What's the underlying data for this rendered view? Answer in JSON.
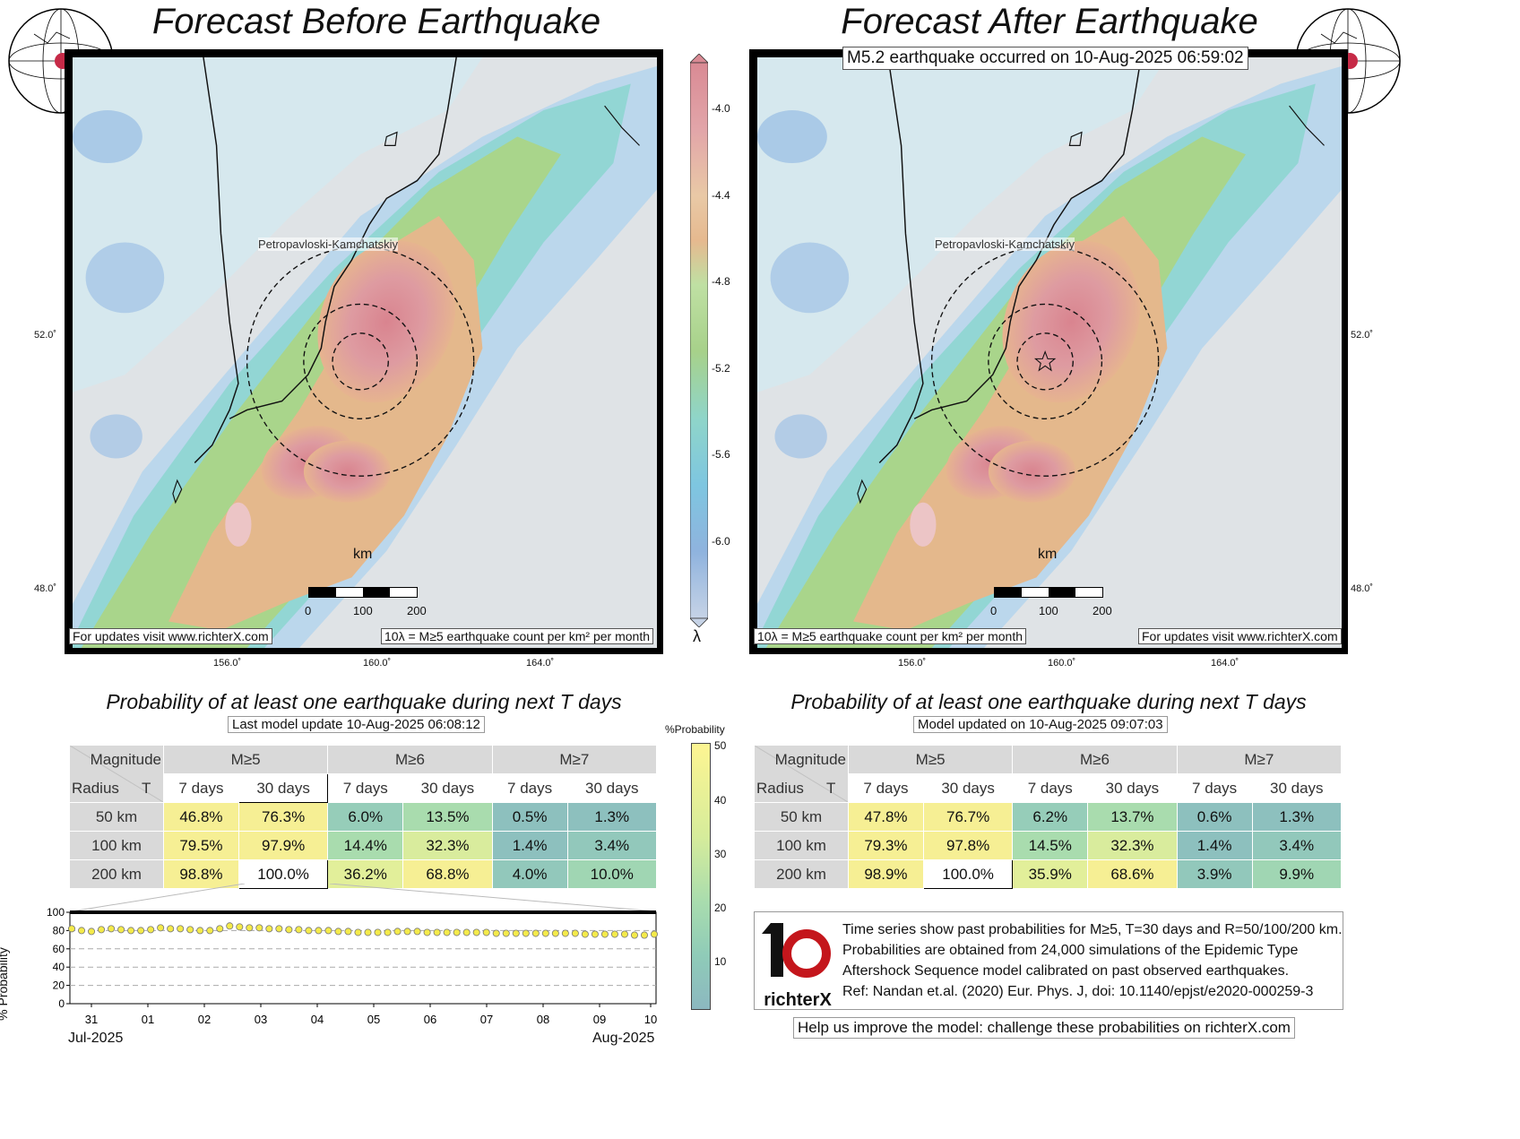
{
  "left_map": {
    "title": "Forecast Before Earthquake",
    "city_label": "Petropavloski-Kamchatskiy",
    "updates_note": "For updates visit www.richterX.com",
    "lambda_note": "10λ = M≥5 earthquake count per km² per month",
    "scale_unit": "km",
    "scale_ticks": [
      "0",
      "100",
      "200"
    ],
    "lat_ticks": [
      "52.0˚",
      "48.0˚"
    ],
    "lon_ticks": [
      "156.0˚",
      "160.0˚",
      "164.0˚"
    ]
  },
  "right_map": {
    "title": "Forecast After Earthquake",
    "event_banner": "M5.2 earthquake occurred on 10-Aug-2025 06:59:02",
    "city_label": "Petropavloski-Kamchatskiy",
    "updates_note": "For updates visit www.richterX.com",
    "lambda_note": "10λ = M≥5 earthquake count per km² per month",
    "scale_unit": "km",
    "scale_ticks": [
      "0",
      "100",
      "200"
    ],
    "lat_ticks": [
      "52.0˚",
      "48.0˚"
    ],
    "lon_ticks": [
      "156.0˚",
      "160.0˚",
      "164.0˚"
    ]
  },
  "lambda_colorbar": {
    "symbol": "λ",
    "ticks": [
      "-4.0",
      "-4.4",
      "-4.8",
      "-5.2",
      "-5.6",
      "-6.0"
    ],
    "colors": [
      "#d98a94",
      "#e2a5a9",
      "#e6b98f",
      "#e9c9a6",
      "#a7d18a",
      "#8fd5c9",
      "#7ec6e0",
      "#8fb3de",
      "#c6d3e6"
    ]
  },
  "left_table": {
    "title": "Probability of at least one earthquake during next T days",
    "subtitle": "Last model update 10-Aug-2025 06:08:12",
    "corner_top": "Magnitude",
    "corner_left": "Radius",
    "corner_right": "T",
    "magnitudes": [
      "M≥5",
      "M≥6",
      "M≥7"
    ],
    "periods": [
      "7 days",
      "30 days",
      "7 days",
      "30 days",
      "7 days",
      "30 days"
    ],
    "rows": [
      {
        "radius": "50 km",
        "cells": [
          "46.8%",
          "76.3%",
          "6.0%",
          "13.5%",
          "0.5%",
          "1.3%"
        ],
        "colors": [
          "#f6ef94",
          "#f6ef94",
          "#96cdb9",
          "#a9dcae",
          "#8dc0be",
          "#8dc0be"
        ]
      },
      {
        "radius": "100 km",
        "cells": [
          "79.5%",
          "97.9%",
          "14.4%",
          "32.3%",
          "1.4%",
          "3.4%"
        ],
        "colors": [
          "#f6ef94",
          "#f6ef94",
          "#a9dcae",
          "#d9ec9d",
          "#8dc0be",
          "#92c8bb"
        ]
      },
      {
        "radius": "200 km",
        "cells": [
          "98.8%",
          "100.0%",
          "36.2%",
          "68.8%",
          "4.0%",
          "10.0%"
        ],
        "colors": [
          "#f6ef94",
          "#ffffff",
          "#e2ef9a",
          "#f6ef94",
          "#92c8bb",
          "#a0d6b3"
        ]
      }
    ]
  },
  "right_table": {
    "title": "Probability of at least one earthquake during next T days",
    "subtitle": "Model updated on 10-Aug-2025 09:07:03",
    "corner_top": "Magnitude",
    "corner_left": "Radius",
    "corner_right": "T",
    "magnitudes": [
      "M≥5",
      "M≥6",
      "M≥7"
    ],
    "periods": [
      "7 days",
      "30 days",
      "7 days",
      "30 days",
      "7 days",
      "30 days"
    ],
    "rows": [
      {
        "radius": "50 km",
        "cells": [
          "47.8%",
          "76.7%",
          "6.2%",
          "13.7%",
          "0.6%",
          "1.3%"
        ],
        "colors": [
          "#f6ef94",
          "#f6ef94",
          "#96cdb9",
          "#a9dcae",
          "#8dc0be",
          "#8dc0be"
        ]
      },
      {
        "radius": "100 km",
        "cells": [
          "79.3%",
          "97.8%",
          "14.5%",
          "32.3%",
          "1.4%",
          "3.4%"
        ],
        "colors": [
          "#f6ef94",
          "#f6ef94",
          "#a9dcae",
          "#d9ec9d",
          "#8dc0be",
          "#92c8bb"
        ]
      },
      {
        "radius": "200 km",
        "cells": [
          "98.9%",
          "100.0%",
          "35.9%",
          "68.6%",
          "3.9%",
          "9.9%"
        ],
        "colors": [
          "#f6ef94",
          "#ffffff",
          "#e2ef9a",
          "#f6ef94",
          "#92c8bb",
          "#a0d6b3"
        ]
      }
    ]
  },
  "prob_colorbar": {
    "label": "%Probability",
    "ticks": [
      "50",
      "40",
      "30",
      "20",
      "10"
    ],
    "colors": [
      "#fdf592",
      "#d6ec9b",
      "#a8dcae",
      "#8fcbb8",
      "#8cb8c0"
    ]
  },
  "timeseries": {
    "ylabel": "% Probability",
    "yticks": [
      "100",
      "80",
      "60",
      "40",
      "20",
      "0"
    ],
    "xticks": [
      "31",
      "01",
      "02",
      "03",
      "04",
      "05",
      "06",
      "07",
      "08",
      "09",
      "10"
    ],
    "month_left": "Jul-2025",
    "month_right": "Aug-2025",
    "chart_data": {
      "type": "scatter",
      "ylim": [
        0,
        100
      ],
      "values": [
        82,
        80,
        79,
        81,
        82,
        81,
        80,
        80,
        81,
        83,
        82,
        82,
        81,
        80,
        80,
        82,
        85,
        84,
        83,
        83,
        82,
        82,
        81,
        81,
        80,
        80,
        80,
        79,
        79,
        78,
        78,
        78,
        78,
        79,
        79,
        79,
        78,
        78,
        78,
        78,
        78,
        78,
        78,
        77,
        77,
        77,
        77,
        77,
        77,
        77,
        77,
        77,
        76,
        76,
        76,
        76,
        76,
        75,
        75,
        76
      ]
    }
  },
  "info_box": {
    "logo_text": "richterX",
    "lines": [
      "Time series show past probabilities for M≥5, T=30 days and R=50/100/200 km.",
      "Probabilities are obtained from 24,000 simulations of the Epidemic Type",
      "Aftershock Sequence model calibrated on past observed earthquakes.",
      "Ref: Nandan et.al. (2020) Eur. Phys. J, doi: 10.1140/epjst/e2020-000259-3"
    ]
  },
  "footer": {
    "text": "Help us improve the model: challenge these probabilities on richterX.com"
  }
}
